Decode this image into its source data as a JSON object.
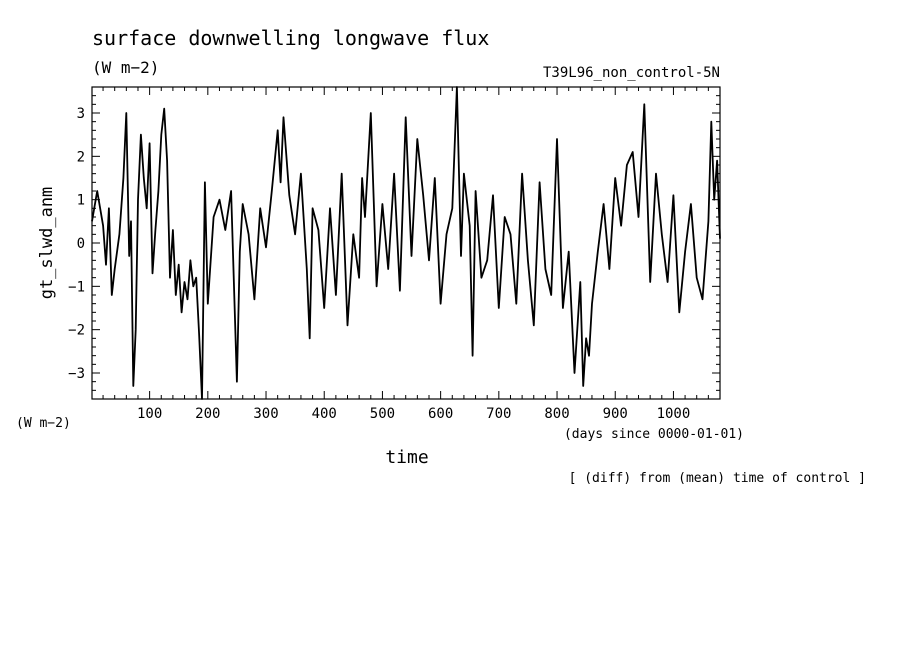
{
  "title": "surface downwelling longwave flux",
  "units": "(W m−2)",
  "experiment": "T39L96_non_control-5N",
  "left_units": "(W m−2)",
  "x_units_note": "(days since 0000-01-01)",
  "footer_note": "[ (diff) from (mean) time of control ]",
  "chart_data": {
    "type": "line",
    "title": "surface downwelling longwave flux",
    "xlabel": "time",
    "ylabel": "gt_slwd_anm",
    "xlim": [
      1,
      1080
    ],
    "ylim": [
      -3.6,
      3.6
    ],
    "x_ticks": [
      100,
      200,
      300,
      400,
      500,
      600,
      700,
      800,
      900,
      1000
    ],
    "y_ticks": [
      -3,
      -2,
      -1,
      0,
      1,
      2,
      3
    ],
    "x_tick_labels": [
      "100",
      "200",
      "300",
      "400",
      "500",
      "600",
      "700",
      "800",
      "900",
      "1000"
    ],
    "y_tick_labels": [
      "−3",
      "−2",
      "−1",
      "0",
      "1",
      "2",
      "3"
    ],
    "grid": false,
    "series": [
      {
        "x": [
          1,
          10,
          20,
          25,
          30,
          35,
          40,
          48,
          55,
          60,
          65,
          68,
          72,
          76,
          80,
          85,
          90,
          95,
          100,
          105,
          110,
          115,
          120,
          125,
          130,
          135,
          140,
          145,
          150,
          155,
          160,
          165,
          170,
          175,
          180,
          185,
          190,
          195,
          200,
          210,
          220,
          230,
          240,
          250,
          255,
          260,
          270,
          280,
          290,
          300,
          310,
          320,
          325,
          330,
          340,
          350,
          360,
          370,
          375,
          380,
          390,
          400,
          410,
          420,
          430,
          440,
          450,
          460,
          465,
          470,
          480,
          490,
          500,
          510,
          520,
          530,
          540,
          550,
          560,
          570,
          580,
          590,
          600,
          610,
          620,
          628,
          635,
          640,
          650,
          655,
          660,
          670,
          680,
          690,
          700,
          710,
          720,
          730,
          740,
          750,
          760,
          770,
          780,
          790,
          800,
          810,
          820,
          830,
          840,
          845,
          850,
          855,
          860,
          870,
          880,
          890,
          900,
          910,
          920,
          930,
          940,
          950,
          960,
          970,
          980,
          990,
          1000,
          1010,
          1020,
          1030,
          1040,
          1050,
          1060,
          1065,
          1070,
          1075,
          1080
        ],
        "y": [
          0.5,
          1.2,
          0.4,
          -0.5,
          0.8,
          -1.2,
          -0.6,
          0.2,
          1.5,
          3.0,
          -0.3,
          0.5,
          -3.3,
          -2.0,
          1.0,
          2.5,
          1.5,
          0.8,
          2.3,
          -0.7,
          0.3,
          1.2,
          2.5,
          3.1,
          1.9,
          -0.8,
          0.3,
          -1.2,
          -0.5,
          -1.6,
          -0.9,
          -1.3,
          -0.4,
          -1.0,
          -0.8,
          -2.1,
          -3.6,
          1.4,
          -1.4,
          0.6,
          1.0,
          0.3,
          1.2,
          -3.2,
          -0.2,
          0.9,
          0.2,
          -1.3,
          0.8,
          -0.1,
          1.2,
          2.6,
          1.4,
          2.9,
          1.1,
          0.2,
          1.6,
          -0.6,
          -2.2,
          0.8,
          0.3,
          -1.5,
          0.8,
          -1.2,
          1.6,
          -1.9,
          0.2,
          -0.8,
          1.5,
          0.6,
          3.0,
          -1.0,
          0.9,
          -0.6,
          1.6,
          -1.1,
          2.9,
          -0.3,
          2.4,
          1.1,
          -0.4,
          1.5,
          -1.4,
          0.2,
          0.8,
          3.6,
          -0.3,
          1.6,
          0.4,
          -2.6,
          1.2,
          -0.8,
          -0.4,
          1.1,
          -1.5,
          0.6,
          0.2,
          -1.4,
          1.6,
          -0.4,
          -1.9,
          1.4,
          -0.6,
          -1.2,
          2.4,
          -1.5,
          -0.2,
          -3.0,
          -0.9,
          -3.3,
          -2.2,
          -2.6,
          -1.4,
          -0.2,
          0.9,
          -0.6,
          1.5,
          0.4,
          1.8,
          2.1,
          0.6,
          3.2,
          -0.9,
          1.6,
          0.2,
          -0.9,
          1.1,
          -1.6,
          -0.2,
          0.9,
          -0.8,
          -1.3,
          0.5,
          2.8,
          1.0,
          1.9,
          0.1
        ]
      }
    ]
  }
}
